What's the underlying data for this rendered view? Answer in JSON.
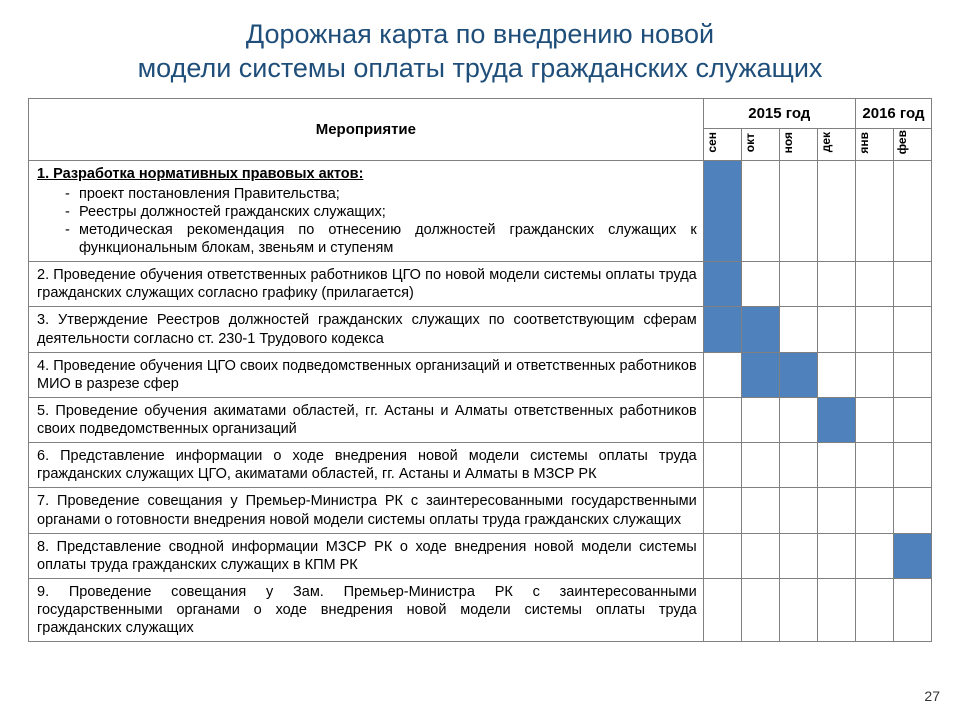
{
  "colors": {
    "title": "#1e4e79",
    "fill": "#4f81bd",
    "border": "#808080",
    "text": "#000000"
  },
  "title_line1": "Дорожная карта по внедрению новой",
  "title_line2": "модели системы оплаты труда гражданских служащих",
  "year_2015": "2015 год",
  "year_2016": "2016 год",
  "col_event": "Мероприятие",
  "months": [
    "сен",
    "окт",
    "ноя",
    "дек",
    "янв",
    "фев"
  ],
  "page_number": "27",
  "rows": [
    {
      "heading": "1. Разработка нормативных правовых актов:",
      "bullets": [
        "проект постановления Правительства;",
        "Реестры должностей гражданских служащих;",
        "методическая рекомендация по отнесению должностей гражданских служащих к функциональным блокам, звеньям и ступеням"
      ],
      "fills": [
        true,
        false,
        false,
        false,
        false,
        false
      ]
    },
    {
      "text": "2. Проведение обучения ответственных работников ЦГО по новой модели системы оплаты труда гражданских служащих согласно графику (прилагается)",
      "fills": [
        true,
        false,
        false,
        false,
        false,
        false
      ]
    },
    {
      "text": "3. Утверждение Реестров должностей гражданских служащих по соответствующим сферам деятельности согласно ст. 230-1 Трудового кодекса",
      "fills": [
        true,
        true,
        false,
        false,
        false,
        false
      ]
    },
    {
      "text": "4. Проведение обучения ЦГО своих подведомственных организаций  и ответственных работников МИО в разрезе сфер",
      "fills": [
        false,
        true,
        true,
        false,
        false,
        false
      ]
    },
    {
      "text": "5. Проведение обучения акиматами областей, гг. Астаны и Алматы ответственных работников своих подведомственных организаций",
      "fills": [
        false,
        false,
        false,
        true,
        false,
        false
      ]
    },
    {
      "text": "6. Представление информации о ходе внедрения новой модели системы оплаты труда гражданских служащих ЦГО, акиматами областей, гг. Астаны и Алматы в МЗСР РК",
      "fills": [
        false,
        false,
        false,
        false,
        false,
        false
      ]
    },
    {
      "text": "7. Проведение совещания у Премьер-Министра РК  с заинтересованными государственными органами о готовности внедрения новой модели системы оплаты труда гражданских служащих",
      "fills": [
        false,
        false,
        false,
        false,
        false,
        false
      ]
    },
    {
      "text": "8. Представление сводной информации МЗСР РК о ходе внедрения новой модели системы оплаты труда гражданских служащих в КПМ РК",
      "fills": [
        false,
        false,
        false,
        false,
        false,
        true
      ]
    },
    {
      "text": "9. Проведение совещания у Зам. Премьер-Министра РК  с заинтересованными государственными органами о ходе внедрения новой модели системы оплаты труда гражданских служащих",
      "fills": [
        false,
        false,
        false,
        false,
        false,
        false
      ]
    }
  ]
}
